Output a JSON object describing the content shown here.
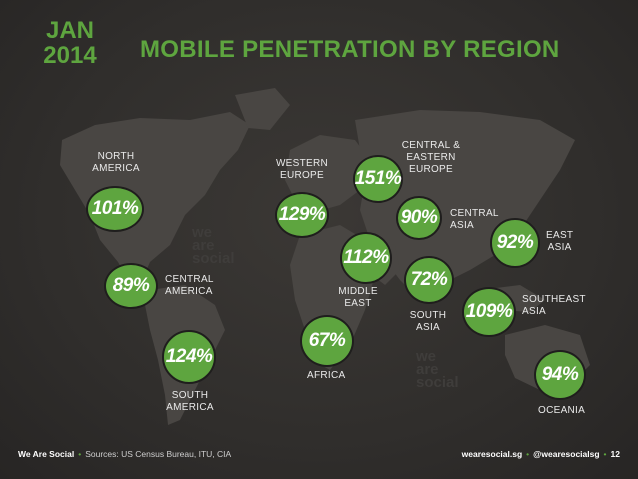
{
  "header": {
    "month": "JAN",
    "year": "2014",
    "title": "MOBILE PENETRATION BY REGION"
  },
  "watermark": {
    "text": "we\nare\nsocial"
  },
  "regions": [
    {
      "name": "NORTH\nAMERICA",
      "value": "101%"
    },
    {
      "name": "CENTRAL\nAMERICA",
      "value": "89%"
    },
    {
      "name": "SOUTH\nAMERICA",
      "value": "124%"
    },
    {
      "name": "WESTERN\nEUROPE",
      "value": "129%"
    },
    {
      "name": "CENTRAL &\nEASTERN\nEUROPE",
      "value": "151%"
    },
    {
      "name": "CENTRAL\nASIA",
      "value": "90%"
    },
    {
      "name": "MIDDLE\nEAST",
      "value": "112%"
    },
    {
      "name": "AFRICA",
      "value": "67%"
    },
    {
      "name": "SOUTH\nASIA",
      "value": "72%"
    },
    {
      "name": "EAST\nASIA",
      "value": "92%"
    },
    {
      "name": "SOUTHEAST\nASIA",
      "value": "109%"
    },
    {
      "name": "OCEANIA",
      "value": "94%"
    }
  ],
  "footer": {
    "brand": "We Are Social",
    "separator": "•",
    "sources": "Sources: US Census Bureau, ITU, CIA",
    "website": "wearesocial.sg",
    "handle": "@wearesocialsg",
    "page": "12"
  },
  "colors": {
    "accent": "#5ea53f",
    "background": "#302e2c",
    "land": "#4a4744"
  }
}
